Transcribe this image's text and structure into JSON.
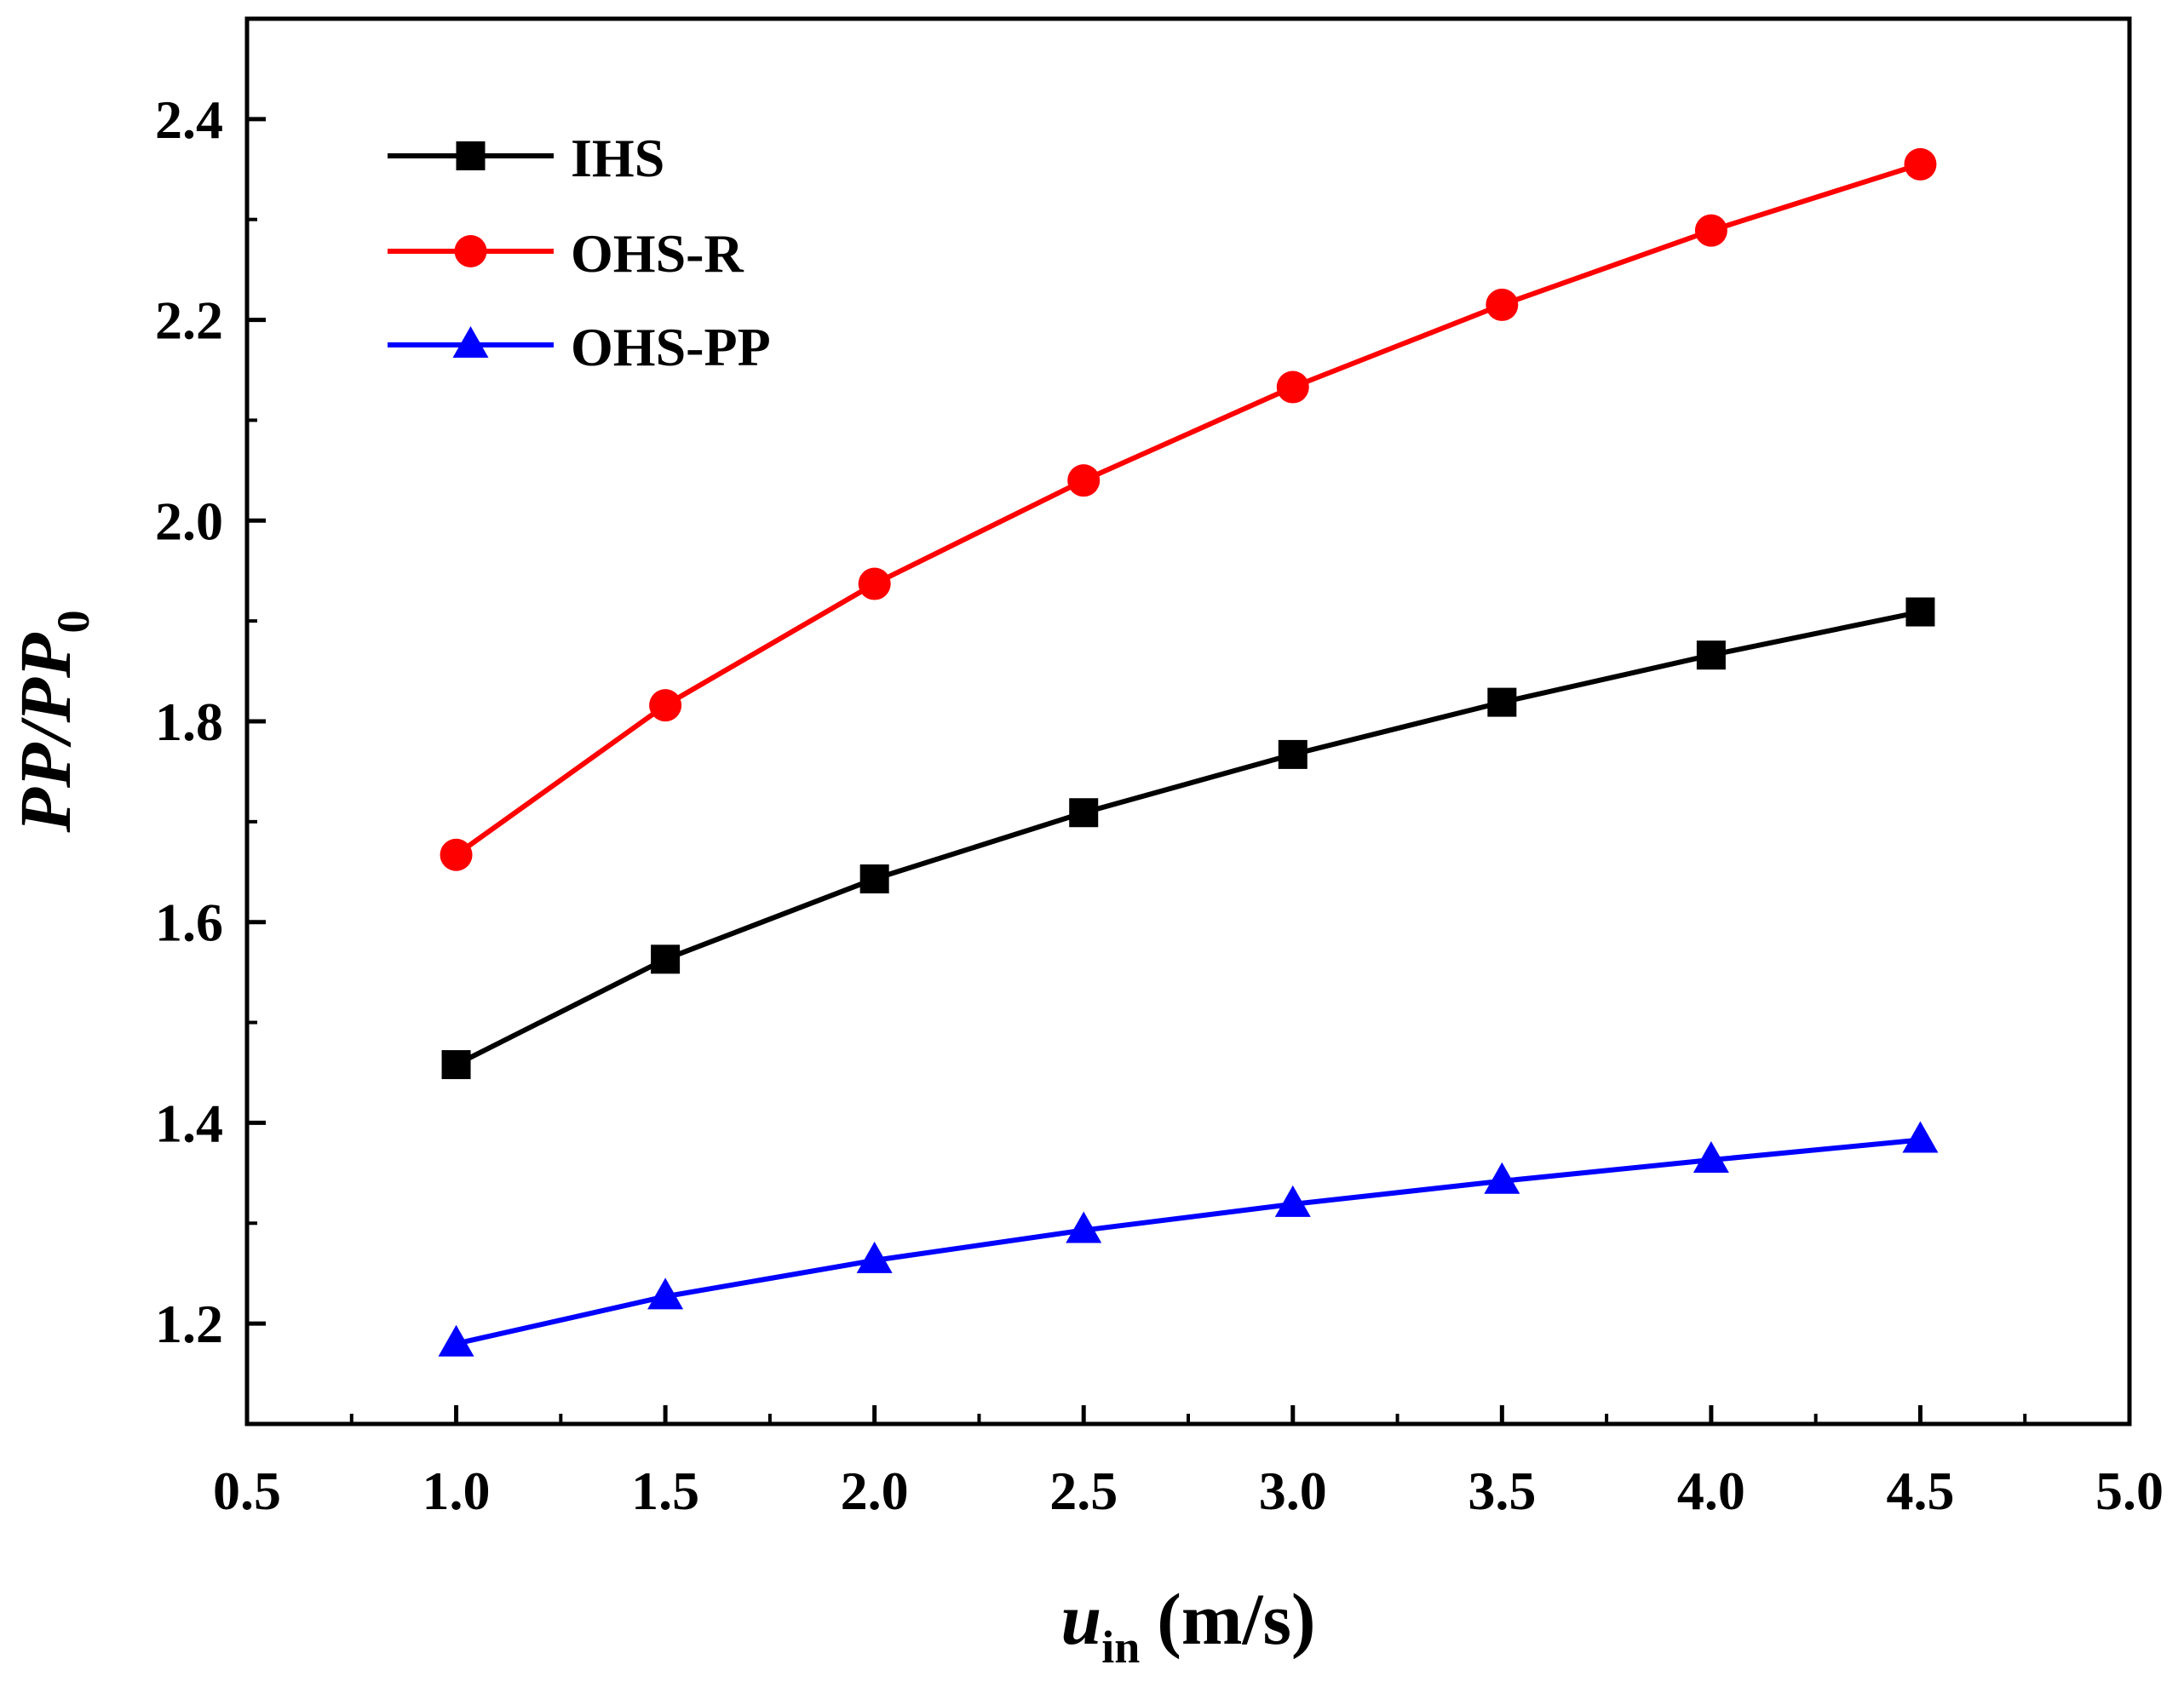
{
  "chart_data": {
    "type": "line",
    "title": "",
    "xlabel": {
      "main": "u",
      "subscript": "in",
      "unit": "(m/s)"
    },
    "ylabel": {
      "main": "PP/PP",
      "subscript": "0"
    },
    "xlim": [
      0.5,
      5.0
    ],
    "ylim": [
      1.1,
      2.5
    ],
    "x_ticks": [
      "0.5",
      "1.0",
      "1.5",
      "2.0",
      "2.5",
      "3.0",
      "3.5",
      "4.0",
      "4.5",
      "5.0"
    ],
    "y_ticks": [
      "1.2",
      "1.4",
      "1.6",
      "1.8",
      "2.0",
      "2.2",
      "2.4"
    ],
    "x": [
      1.0,
      1.5,
      2.0,
      2.5,
      3.0,
      3.5,
      4.0,
      4.5
    ],
    "legend_position": "top-left",
    "grid": false,
    "series": [
      {
        "name": "IHS",
        "color": "#000000",
        "marker": "square",
        "values": [
          1.458,
          1.563,
          1.643,
          1.709,
          1.767,
          1.819,
          1.866,
          1.909
        ]
      },
      {
        "name": "OHS-R",
        "color": "#ff0000",
        "marker": "circle",
        "values": [
          1.667,
          1.816,
          1.937,
          2.04,
          2.133,
          2.215,
          2.289,
          2.355
        ]
      },
      {
        "name": "OHS-PP",
        "color": "#0000ff",
        "marker": "triangle",
        "values": [
          1.18,
          1.227,
          1.263,
          1.293,
          1.319,
          1.342,
          1.363,
          1.383
        ]
      }
    ]
  }
}
